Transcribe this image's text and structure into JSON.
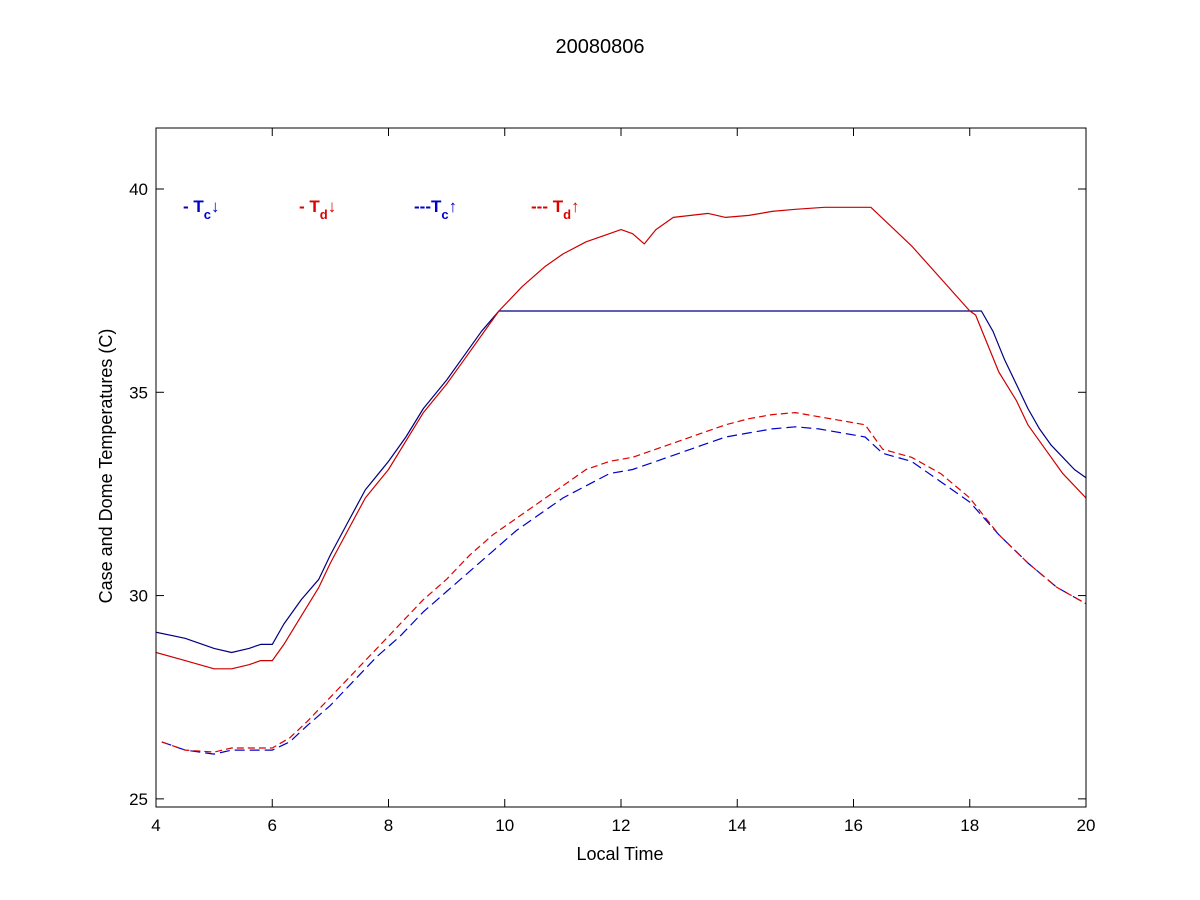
{
  "chart_data": {
    "type": "line",
    "title": "20080806",
    "xlabel": "Local Time",
    "ylabel": "Case and Dome Temperatures (C)",
    "xlim": [
      4,
      20
    ],
    "ylim": [
      24.8,
      41.5
    ],
    "xticks": [
      4,
      6,
      8,
      10,
      12,
      14,
      16,
      18,
      20
    ],
    "yticks": [
      25,
      30,
      35,
      40
    ],
    "grid": false,
    "legend": {
      "placement": "top-left",
      "entries": [
        {
          "prefix": "- ",
          "base": "T",
          "sub": "c",
          "arrow": "↓",
          "color": "#0000cc"
        },
        {
          "prefix": "- ",
          "base": "T",
          "sub": "d",
          "arrow": "↓",
          "color": "#dd0000"
        },
        {
          "prefix": "---",
          "base": "T",
          "sub": "c",
          "arrow": "↑",
          "color": "#0000cc"
        },
        {
          "prefix": "--- ",
          "base": "T",
          "sub": "d",
          "arrow": "↑",
          "color": "#dd0000"
        }
      ]
    },
    "series": [
      {
        "key": "tc_down",
        "color": "#000080",
        "dash": "none",
        "x": [
          4.0,
          4.5,
          5.0,
          5.3,
          5.6,
          5.8,
          6.0,
          6.2,
          6.5,
          6.8,
          7.0,
          7.3,
          7.6,
          8.0,
          8.3,
          8.6,
          9.0,
          9.3,
          9.6,
          9.9,
          10.0,
          12.0,
          14.0,
          16.0,
          18.0,
          18.2,
          18.4,
          18.6,
          18.8,
          19.0,
          19.2,
          19.4,
          19.6,
          19.8,
          20.0
        ],
        "y": [
          29.1,
          28.95,
          28.7,
          28.6,
          28.7,
          28.8,
          28.8,
          29.3,
          29.9,
          30.4,
          31.0,
          31.8,
          32.6,
          33.3,
          33.9,
          34.6,
          35.3,
          35.9,
          36.5,
          37.0,
          37.0,
          37.0,
          37.0,
          37.0,
          37.0,
          37.0,
          36.5,
          35.8,
          35.2,
          34.6,
          34.1,
          33.7,
          33.4,
          33.1,
          32.9
        ]
      },
      {
        "key": "td_down",
        "color": "#cc0000",
        "dash": "none",
        "x": [
          4.0,
          4.5,
          5.0,
          5.3,
          5.6,
          5.8,
          6.0,
          6.2,
          6.5,
          6.8,
          7.0,
          7.3,
          7.6,
          8.0,
          8.3,
          8.6,
          9.0,
          9.3,
          9.6,
          9.9,
          10.3,
          10.7,
          11.0,
          11.4,
          11.8,
          12.0,
          12.2,
          12.4,
          12.6,
          12.9,
          13.2,
          13.5,
          13.8,
          14.2,
          14.6,
          15.0,
          15.5,
          16.0,
          16.3,
          17.0,
          17.5,
          18.0,
          18.1,
          18.3,
          18.5,
          18.8,
          19.0,
          19.3,
          19.6,
          20.0
        ],
        "y": [
          28.6,
          28.4,
          28.2,
          28.2,
          28.3,
          28.4,
          28.4,
          28.8,
          29.5,
          30.2,
          30.8,
          31.6,
          32.4,
          33.1,
          33.8,
          34.5,
          35.2,
          35.8,
          36.4,
          37.0,
          37.6,
          38.1,
          38.4,
          38.7,
          38.9,
          39.0,
          38.9,
          38.65,
          39.0,
          39.3,
          39.35,
          39.4,
          39.3,
          39.35,
          39.45,
          39.5,
          39.55,
          39.55,
          39.55,
          38.6,
          37.8,
          37.0,
          36.9,
          36.2,
          35.5,
          34.8,
          34.2,
          33.6,
          33.0,
          32.4
        ]
      },
      {
        "key": "tc_up",
        "color": "#0000cc",
        "dash": "10,5",
        "x": [
          4.1,
          4.5,
          5.0,
          5.3,
          5.6,
          6.0,
          6.3,
          6.6,
          7.0,
          7.4,
          7.8,
          8.2,
          8.6,
          9.0,
          9.4,
          9.8,
          10.2,
          10.6,
          11.0,
          11.4,
          11.8,
          12.2,
          12.6,
          13.0,
          13.4,
          13.8,
          14.2,
          14.6,
          15.0,
          15.4,
          15.8,
          16.2,
          16.5,
          17.0,
          17.5,
          18.0,
          18.5,
          19.0,
          19.5,
          20.0
        ],
        "y": [
          26.4,
          26.2,
          26.1,
          26.2,
          26.2,
          26.2,
          26.4,
          26.8,
          27.3,
          27.9,
          28.5,
          29.0,
          29.6,
          30.1,
          30.6,
          31.1,
          31.6,
          32.0,
          32.4,
          32.7,
          33.0,
          33.1,
          33.3,
          33.5,
          33.7,
          33.9,
          34.0,
          34.1,
          34.15,
          34.1,
          34.0,
          33.9,
          33.5,
          33.3,
          32.8,
          32.3,
          31.5,
          30.8,
          30.2,
          29.8
        ]
      },
      {
        "key": "td_up",
        "color": "#dd0000",
        "dash": "7,4",
        "x": [
          4.1,
          4.5,
          5.0,
          5.3,
          5.6,
          6.0,
          6.3,
          6.6,
          7.0,
          7.4,
          7.8,
          8.2,
          8.6,
          9.0,
          9.4,
          9.8,
          10.2,
          10.6,
          11.0,
          11.4,
          11.8,
          12.2,
          12.6,
          13.0,
          13.4,
          13.8,
          14.2,
          14.6,
          15.0,
          15.4,
          15.8,
          16.2,
          16.5,
          17.0,
          17.5,
          18.0,
          18.5,
          19.0,
          19.5,
          20.0
        ],
        "y": [
          26.4,
          26.2,
          26.15,
          26.25,
          26.25,
          26.25,
          26.5,
          26.9,
          27.5,
          28.1,
          28.7,
          29.3,
          29.9,
          30.4,
          31.0,
          31.5,
          31.9,
          32.3,
          32.7,
          33.1,
          33.3,
          33.4,
          33.6,
          33.8,
          34.0,
          34.2,
          34.35,
          34.45,
          34.5,
          34.4,
          34.3,
          34.2,
          33.6,
          33.4,
          33.0,
          32.4,
          31.5,
          30.8,
          30.2,
          29.8
        ]
      }
    ]
  }
}
